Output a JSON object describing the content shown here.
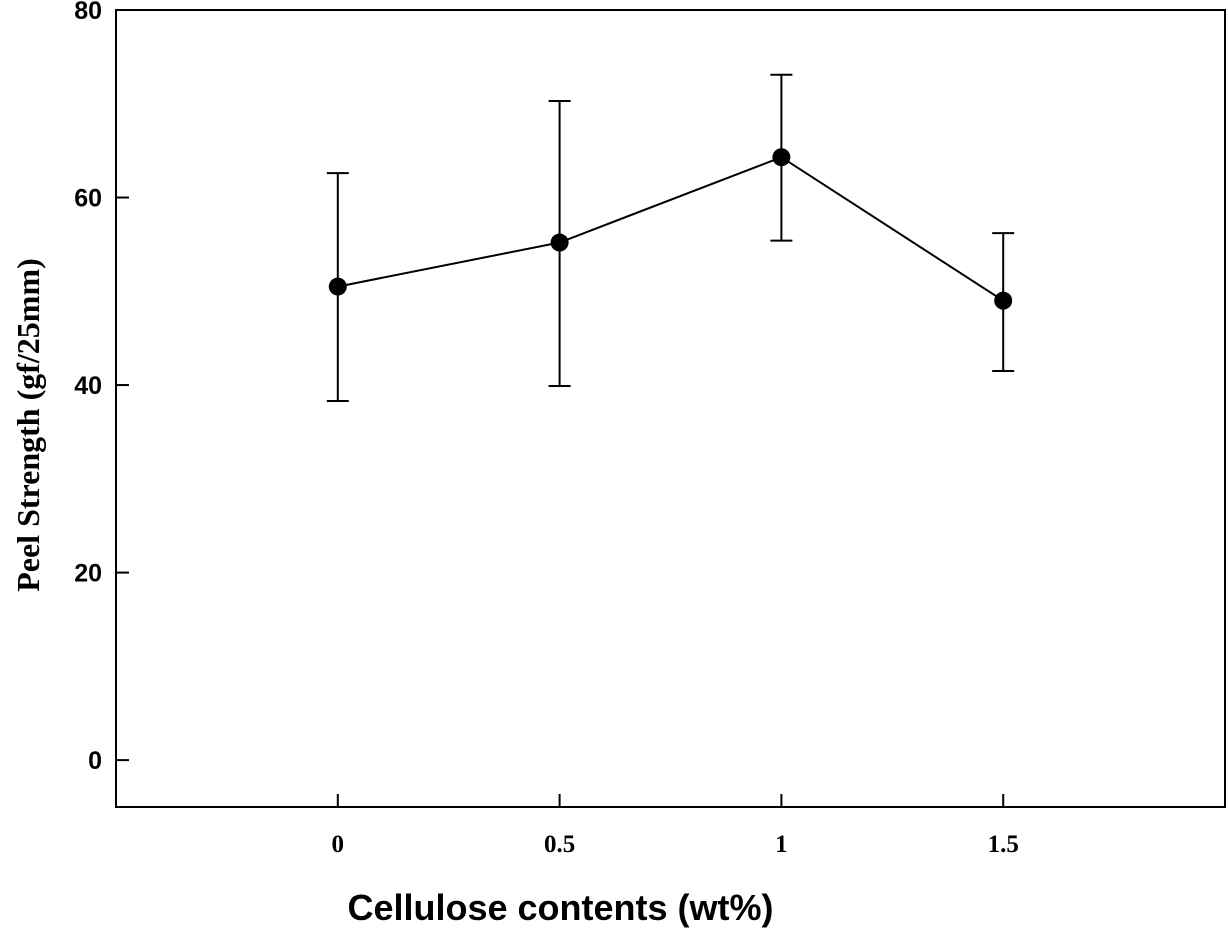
{
  "chart_data": {
    "type": "line",
    "title": "",
    "xlabel": "Cellulose contents (wt%)",
    "ylabel": "Peel Strength (gf/25mm)",
    "x_ticks": [
      "0",
      "0.5",
      "1",
      "1.5"
    ],
    "y_ticks": [
      "0",
      "20",
      "40",
      "60",
      "80"
    ],
    "xlim": [
      -0.5,
      2.0
    ],
    "ylim": [
      -5,
      80
    ],
    "grid": false,
    "legend": "none",
    "series": [
      {
        "x": [
          0,
          0.5,
          1,
          1.5
        ],
        "y": [
          50.5,
          55.2,
          64.3,
          49.0
        ],
        "err_low": [
          38.3,
          39.9,
          55.4,
          41.5
        ],
        "err_high": [
          62.6,
          70.3,
          73.1,
          56.2
        ],
        "color": "#000000",
        "marker": "filled-circle"
      }
    ]
  }
}
